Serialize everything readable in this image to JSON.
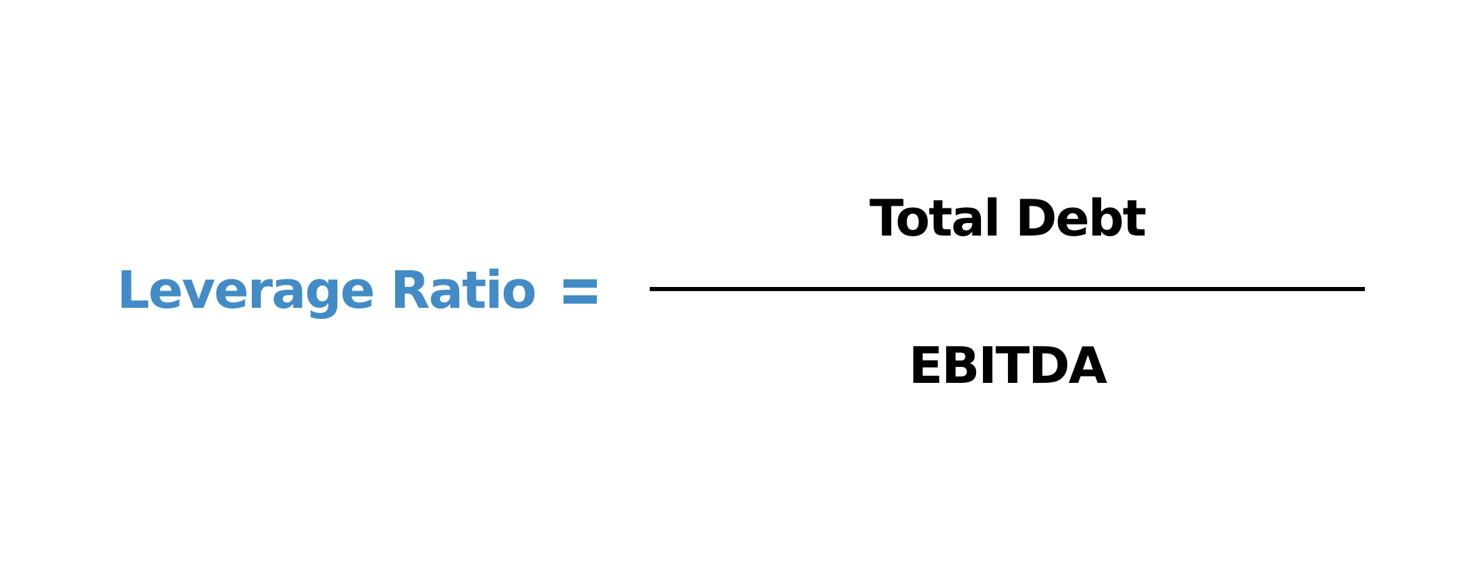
{
  "formula": {
    "lhs_label": "Leverage Ratio",
    "numerator": "Total Debt",
    "denominator": "EBITDA"
  },
  "colors": {
    "accent": "#428BC6",
    "text": "#000000",
    "background": "#FFFFFF"
  }
}
